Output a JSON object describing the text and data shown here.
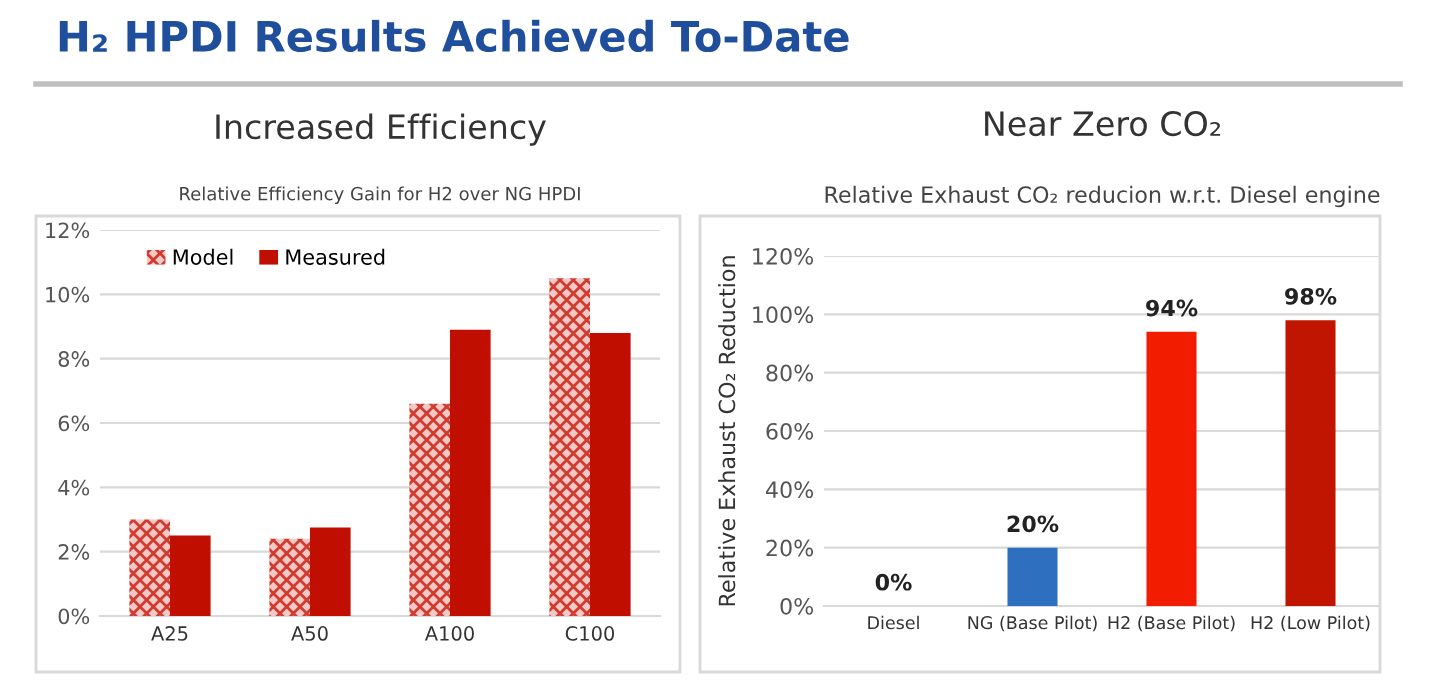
{
  "chart_data": [
    {
      "type": "bar",
      "title": "Increased Efficiency",
      "subtitle": "Relative Efficiency Gain for H2 over NG HPDI",
      "annotations": [
        "H₂ HPDI Results Achieved To-Date"
      ],
      "categories": [
        "A25",
        "A50",
        "A100",
        "C100"
      ],
      "series": [
        {
          "name": "Model",
          "color": "#d23a30",
          "values": [
            3.0,
            2.4,
            6.6,
            10.5
          ]
        },
        {
          "name": "Measured",
          "color": "#c00f00",
          "values": [
            2.5,
            2.75,
            8.9,
            8.8
          ]
        }
      ],
      "ylim": [
        0,
        12
      ],
      "yticks": [
        {
          "value": 0,
          "label": "0%"
        },
        {
          "value": 2,
          "label": "2%"
        },
        {
          "value": 4,
          "label": "4%"
        },
        {
          "value": 6,
          "label": "6%"
        },
        {
          "value": 8,
          "label": "8%"
        },
        {
          "value": 10,
          "label": "10%"
        },
        {
          "value": 12,
          "label": "12%"
        }
      ],
      "grid": "y",
      "legend": "top left"
    },
    {
      "type": "bar",
      "title": "Near Zero CO₂",
      "subtitle": "Relative Exhaust CO₂ reducion w.r.t. Diesel engine",
      "ylabel": "Relative Exhaust CO₂ Reduction",
      "categories": [
        "Diesel",
        "NG (Base Pilot)",
        "H2 (Base Pilot)",
        "H2 (Low Pilot)"
      ],
      "values": [
        0,
        20,
        94,
        98
      ],
      "colors": [
        "#c00f00",
        "#2e6fc0",
        "#f21c00",
        "#c01500"
      ],
      "value_labels": [
        "0%",
        "20%",
        "94%",
        "98%"
      ],
      "ylim": [
        0,
        120
      ],
      "yticks": [
        {
          "value": 0,
          "label": "0%"
        },
        {
          "value": 20,
          "label": "20%"
        },
        {
          "value": 40,
          "label": "40%"
        },
        {
          "value": 60,
          "label": "60%"
        },
        {
          "value": 80,
          "label": "80%"
        },
        {
          "value": 100,
          "label": "100%"
        },
        {
          "value": 120,
          "label": "120%"
        }
      ],
      "grid": "y"
    }
  ]
}
